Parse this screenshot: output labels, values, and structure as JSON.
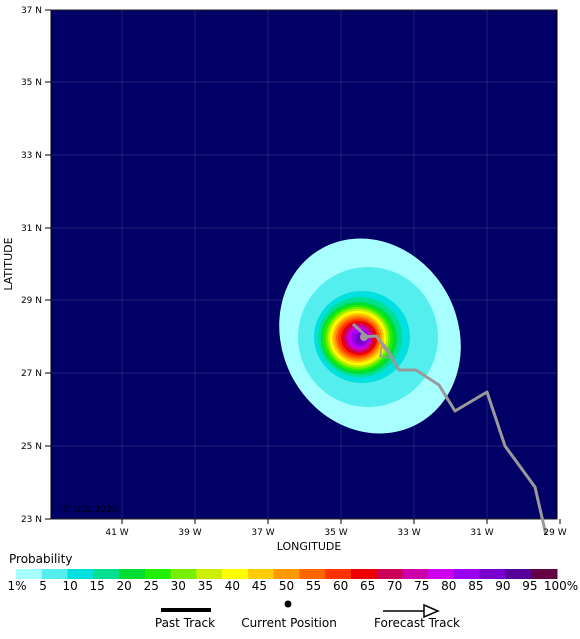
{
  "axes": {
    "x_label": "LONGITUDE",
    "y_label": "LATITUDE",
    "x_ticks": [
      "41 W",
      "39 W",
      "37 W",
      "35 W",
      "33 W",
      "31 W",
      "29 W"
    ],
    "y_ticks": [
      "37 N",
      "35 N",
      "33 N",
      "31 N",
      "29 N",
      "27 N",
      "25 N",
      "23 N"
    ]
  },
  "map": {
    "background_color": "#000066",
    "copyright": "© UCL 2023",
    "track_color": "#9a9a9a"
  },
  "legend": {
    "title": "Probability",
    "labels": [
      "1%",
      "5",
      "10",
      "15",
      "20",
      "25",
      "30",
      "35",
      "40",
      "45",
      "50",
      "55",
      "60",
      "65",
      "70",
      "75",
      "80",
      "85",
      "90",
      "95",
      "100%"
    ],
    "colors": [
      "#a8ffff",
      "#55eeee",
      "#00e0e0",
      "#00e090",
      "#00dd33",
      "#22ee00",
      "#77ee00",
      "#ccee00",
      "#ffff00",
      "#ffcc00",
      "#ff9900",
      "#ff6600",
      "#ff3300",
      "#ee0000",
      "#cc0055",
      "#cc00aa",
      "#cc00ee",
      "#9900ee",
      "#7700cc",
      "#550099",
      "#660044"
    ]
  },
  "key": {
    "past_track": "Past Track",
    "current_position": "Current Position",
    "forecast_track": "Forecast Track"
  }
}
